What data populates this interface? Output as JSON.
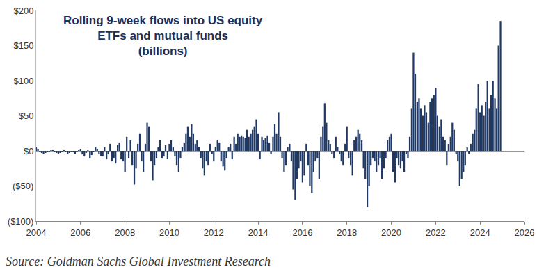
{
  "chart_data": {
    "type": "bar",
    "title": [
      "Rolling 9-week flows into US equity",
      "ETFs and mutual funds",
      "(billions)"
    ],
    "source": "Source: Goldman Sachs Global Investment Research",
    "color": "#1f3864",
    "grid": false,
    "xlim": [
      2004,
      2026
    ],
    "xticks": [
      2004,
      2006,
      2008,
      2010,
      2012,
      2014,
      2016,
      2018,
      2020,
      2022,
      2024,
      2026
    ],
    "ylim": [
      -100,
      200
    ],
    "yticks": [
      {
        "value": -100,
        "label": "($100)"
      },
      {
        "value": -50,
        "label": "($50)"
      },
      {
        "value": 0,
        "label": "$0"
      },
      {
        "value": 50,
        "label": "$50"
      },
      {
        "value": 100,
        "label": "$100"
      },
      {
        "value": 150,
        "label": "$150"
      },
      {
        "value": 200,
        "label": "$200"
      }
    ],
    "x": [
      2004,
      2004.08,
      2004.17,
      2004.25,
      2004.33,
      2004.42,
      2004.5,
      2004.58,
      2004.67,
      2004.75,
      2004.83,
      2004.92,
      2005,
      2005.08,
      2005.17,
      2005.25,
      2005.33,
      2005.42,
      2005.5,
      2005.58,
      2005.67,
      2005.75,
      2005.83,
      2005.92,
      2006,
      2006.08,
      2006.17,
      2006.25,
      2006.33,
      2006.42,
      2006.5,
      2006.58,
      2006.67,
      2006.75,
      2006.83,
      2006.92,
      2007,
      2007.08,
      2007.17,
      2007.25,
      2007.33,
      2007.42,
      2007.5,
      2007.58,
      2007.67,
      2007.75,
      2007.83,
      2007.92,
      2008,
      2008.08,
      2008.17,
      2008.25,
      2008.33,
      2008.42,
      2008.5,
      2008.58,
      2008.67,
      2008.75,
      2008.83,
      2008.92,
      2009,
      2009.08,
      2009.17,
      2009.25,
      2009.33,
      2009.42,
      2009.5,
      2009.58,
      2009.67,
      2009.75,
      2009.83,
      2009.92,
      2010,
      2010.08,
      2010.17,
      2010.25,
      2010.33,
      2010.42,
      2010.5,
      2010.58,
      2010.67,
      2010.75,
      2010.83,
      2010.92,
      2011,
      2011.08,
      2011.17,
      2011.25,
      2011.33,
      2011.42,
      2011.5,
      2011.58,
      2011.67,
      2011.75,
      2011.83,
      2011.92,
      2012,
      2012.08,
      2012.17,
      2012.25,
      2012.33,
      2012.42,
      2012.5,
      2012.58,
      2012.67,
      2012.75,
      2012.83,
      2012.92,
      2013,
      2013.08,
      2013.17,
      2013.25,
      2013.33,
      2013.42,
      2013.5,
      2013.58,
      2013.67,
      2013.75,
      2013.83,
      2013.92,
      2014,
      2014.08,
      2014.17,
      2014.25,
      2014.33,
      2014.42,
      2014.5,
      2014.58,
      2014.67,
      2014.75,
      2014.83,
      2014.92,
      2015,
      2015.08,
      2015.17,
      2015.25,
      2015.33,
      2015.42,
      2015.5,
      2015.58,
      2015.67,
      2015.75,
      2015.83,
      2015.92,
      2016,
      2016.08,
      2016.17,
      2016.25,
      2016.33,
      2016.42,
      2016.5,
      2016.58,
      2016.67,
      2016.75,
      2016.83,
      2016.92,
      2017,
      2017.08,
      2017.17,
      2017.25,
      2017.33,
      2017.42,
      2017.5,
      2017.58,
      2017.67,
      2017.75,
      2017.83,
      2017.92,
      2018,
      2018.08,
      2018.17,
      2018.25,
      2018.33,
      2018.42,
      2018.5,
      2018.58,
      2018.67,
      2018.75,
      2018.83,
      2018.92,
      2019,
      2019.08,
      2019.17,
      2019.25,
      2019.33,
      2019.42,
      2019.5,
      2019.58,
      2019.67,
      2019.75,
      2019.83,
      2019.92,
      2020,
      2020.08,
      2020.17,
      2020.25,
      2020.33,
      2020.42,
      2020.5,
      2020.58,
      2020.67,
      2020.75,
      2020.83,
      2020.92,
      2021,
      2021.08,
      2021.17,
      2021.25,
      2021.33,
      2021.42,
      2021.5,
      2021.58,
      2021.67,
      2021.75,
      2021.83,
      2021.92,
      2022,
      2022.08,
      2022.17,
      2022.25,
      2022.33,
      2022.42,
      2022.5,
      2022.58,
      2022.67,
      2022.75,
      2022.83,
      2022.92,
      2023,
      2023.08,
      2023.17,
      2023.25,
      2023.33,
      2023.42,
      2023.5,
      2023.58,
      2023.67,
      2023.75,
      2023.83,
      2023.92,
      2024,
      2024.08,
      2024.17,
      2024.25,
      2024.33,
      2024.42,
      2024.5,
      2024.58,
      2024.67,
      2024.75,
      2024.83,
      2024.92
    ],
    "values": [
      5,
      3,
      -2,
      -3,
      -4,
      -3,
      -2,
      -1,
      1,
      2,
      -2,
      -3,
      -4,
      -3,
      -1,
      2,
      -2,
      -5,
      -3,
      -1,
      -2,
      -4,
      -1,
      2,
      3,
      -5,
      -8,
      -3,
      2,
      -10,
      -6,
      -2,
      5,
      3,
      -4,
      -7,
      -8,
      5,
      -12,
      -5,
      10,
      -15,
      -10,
      -18,
      8,
      12,
      -12,
      -15,
      -30,
      20,
      -10,
      15,
      -20,
      -48,
      -25,
      10,
      25,
      -15,
      -30,
      10,
      40,
      35,
      -15,
      -42,
      -20,
      -10,
      5,
      15,
      -10,
      -8,
      8,
      -12,
      10,
      15,
      5,
      -8,
      -20,
      -30,
      -10,
      5,
      12,
      25,
      35,
      20,
      38,
      25,
      10,
      15,
      5,
      -10,
      -25,
      -35,
      -15,
      -20,
      10,
      -5,
      -15,
      5,
      15,
      12,
      -15,
      -22,
      -28,
      -10,
      5,
      10,
      -12,
      20,
      10,
      25,
      20,
      22,
      20,
      18,
      30,
      20,
      25,
      30,
      35,
      45,
      25,
      -12,
      20,
      15,
      18,
      22,
      12,
      -5,
      20,
      38,
      25,
      55,
      20,
      -10,
      -30,
      -20,
      5,
      10,
      -15,
      -55,
      -70,
      -40,
      -25,
      -15,
      -45,
      -35,
      10,
      -20,
      -50,
      -60,
      -30,
      -15,
      -10,
      -40,
      20,
      35,
      68,
      40,
      15,
      10,
      -5,
      -10,
      20,
      5,
      -5,
      -15,
      -20,
      10,
      35,
      -10,
      -20,
      -35,
      15,
      20,
      30,
      25,
      15,
      -25,
      -40,
      -80,
      -50,
      -20,
      -10,
      -15,
      -30,
      -20,
      -10,
      -40,
      -25,
      -10,
      15,
      20,
      25,
      -30,
      -45,
      -10,
      -20,
      -25,
      -15,
      -30,
      -5,
      -10,
      20,
      60,
      140,
      110,
      70,
      75,
      60,
      50,
      65,
      55,
      40,
      70,
      75,
      80,
      90,
      50,
      35,
      45,
      20,
      15,
      -20,
      10,
      20,
      40,
      30,
      -5,
      -15,
      -50,
      -40,
      -30,
      -20,
      5,
      -5,
      10,
      25,
      30,
      60,
      95,
      55,
      65,
      50,
      70,
      100,
      60,
      80,
      100,
      75,
      60,
      150,
      185
    ]
  }
}
